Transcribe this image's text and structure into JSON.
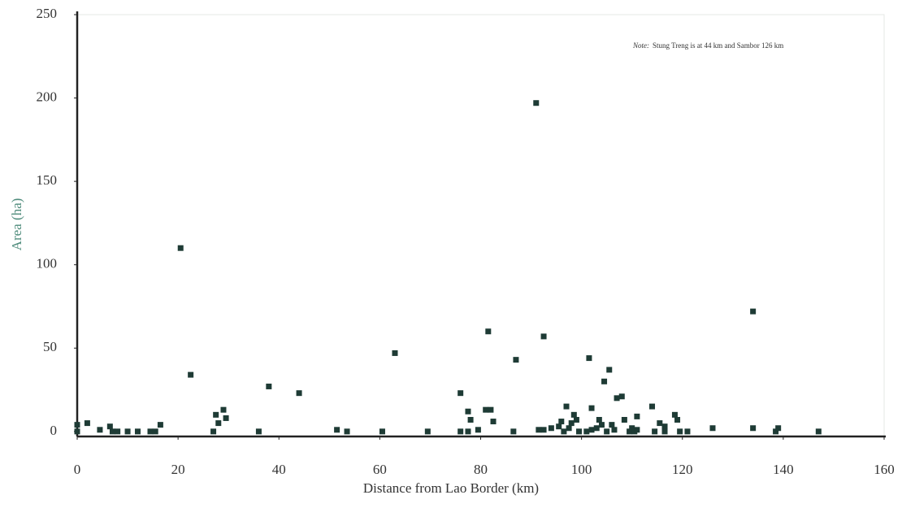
{
  "chart_data": {
    "type": "scatter",
    "x_label": "Distance from Lao Border (km)",
    "y_label": "Area (ha)",
    "note_label": "Note:",
    "note": "Stung Treng is at 44 km and Sambor 126 km",
    "color": "#1e3b35",
    "x": [
      0,
      0,
      2,
      4.5,
      6.5,
      7,
      8,
      10,
      12,
      14.5,
      15.5,
      16.5,
      20.5,
      22.5,
      27,
      27.5,
      28,
      29,
      29.5,
      36,
      38,
      44,
      51.5,
      53.5,
      60.5,
      63,
      69.5,
      76,
      76,
      77.5,
      77.5,
      78,
      79.5,
      81,
      81.5,
      82,
      82.5,
      86.5,
      87,
      91,
      91.5,
      92.5,
      92.5,
      94,
      95.5,
      96,
      96.5,
      97,
      97.5,
      98,
      98.5,
      99,
      99.5,
      101,
      101.5,
      102,
      102,
      103,
      103.5,
      104,
      104.5,
      105,
      105.5,
      106,
      106.5,
      107,
      108,
      108.5,
      109.5,
      110,
      110.5,
      111,
      111,
      114,
      114.5,
      115.5,
      116.5,
      116.5,
      118.5,
      119,
      119.5,
      121,
      126,
      134,
      134,
      138.5,
      139,
      147
    ],
    "values": [
      4,
      0,
      5,
      1,
      3,
      0,
      0,
      0,
      0,
      0,
      0,
      4,
      110,
      34,
      0,
      10,
      5,
      13,
      8,
      0,
      27,
      23,
      1,
      0,
      0,
      47,
      0,
      23,
      0,
      0,
      12,
      7,
      1,
      13,
      60,
      13,
      6,
      0,
      43,
      197,
      1,
      1,
      57,
      2,
      3,
      6,
      0,
      15,
      2,
      5,
      10,
      7,
      0,
      0,
      44,
      14,
      1,
      2,
      7,
      4,
      30,
      0,
      37,
      4,
      1,
      20,
      21,
      7,
      0,
      2,
      0,
      9,
      1,
      15,
      0,
      5,
      3,
      0,
      10,
      7,
      0,
      0,
      2,
      72,
      2,
      0,
      2,
      0
    ],
    "xlim": [
      0,
      160
    ],
    "ylim": [
      -3,
      250
    ],
    "xticks": [
      0,
      20,
      40,
      60,
      80,
      100,
      120,
      140,
      160
    ],
    "yticks": [
      0,
      50,
      100,
      150,
      200,
      250
    ]
  }
}
